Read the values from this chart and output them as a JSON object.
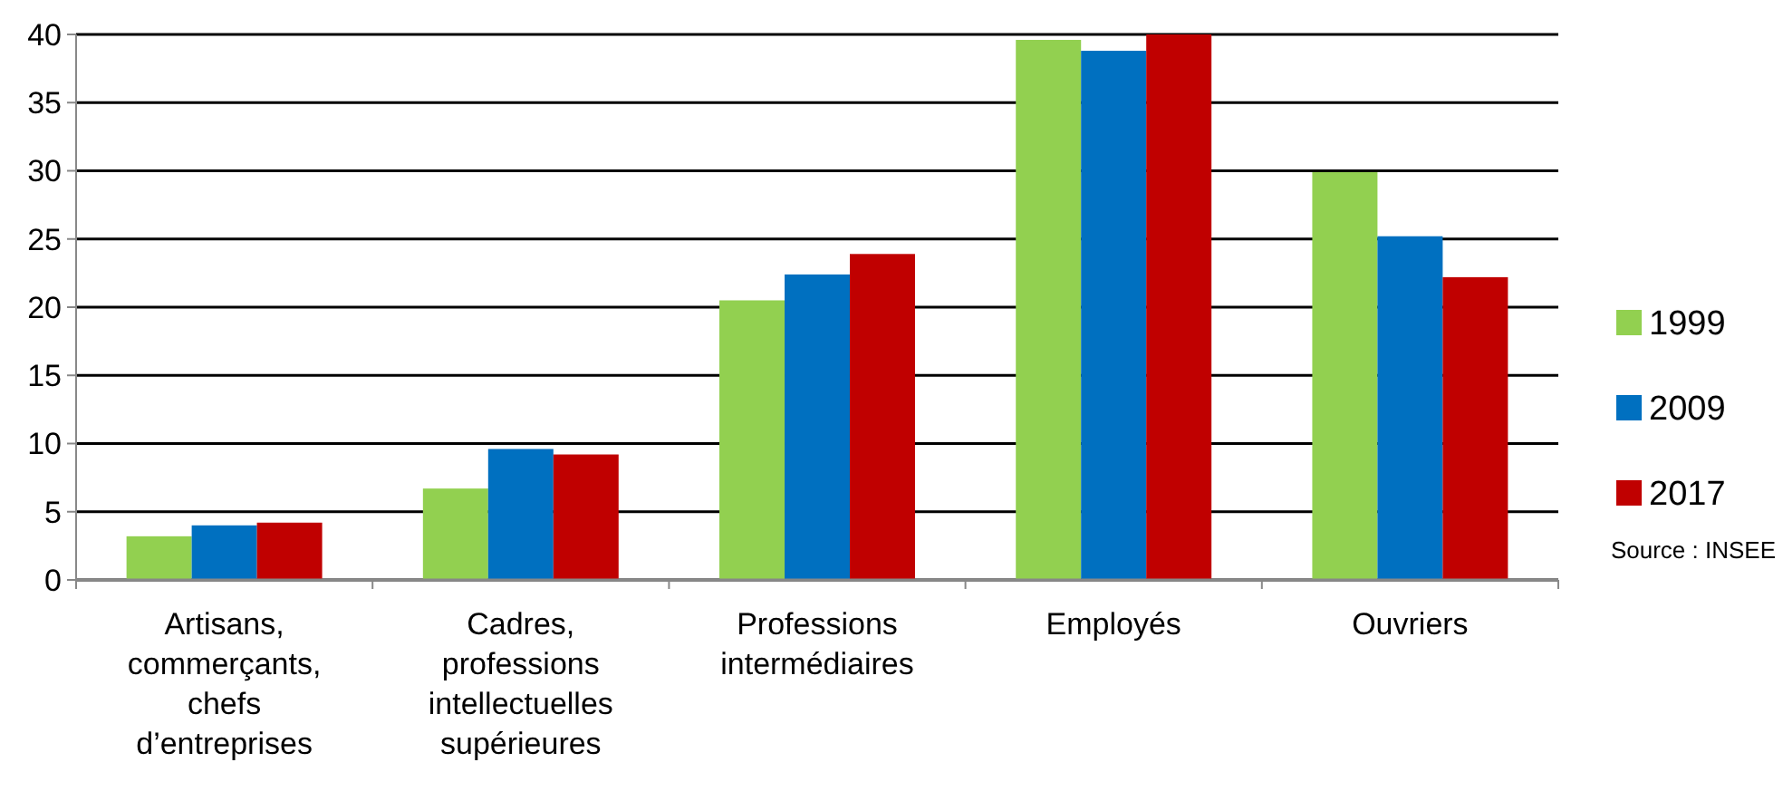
{
  "chart_data": {
    "type": "bar",
    "categories": [
      "Artisans, commerçants, chefs d’entreprises",
      "Cadres, professions intellectuelles supérieures",
      "Professions intermédiaires",
      "Employés",
      "Ouvriers"
    ],
    "series": [
      {
        "name": "1999",
        "color": "#92d050",
        "values": [
          3.2,
          6.7,
          20.5,
          39.6,
          29.9
        ]
      },
      {
        "name": "2009",
        "color": "#0070c0",
        "values": [
          4.0,
          9.6,
          22.4,
          38.8,
          25.2
        ]
      },
      {
        "name": "2017",
        "color": "#c00000",
        "values": [
          4.2,
          9.2,
          23.9,
          40,
          22.2
        ]
      }
    ],
    "ylim": [
      0,
      40
    ],
    "yticks": [
      0,
      5,
      10,
      15,
      20,
      25,
      30,
      35,
      40
    ],
    "grid": "y",
    "legend": "right",
    "annotations": [
      "Source  : INSEE"
    ]
  }
}
